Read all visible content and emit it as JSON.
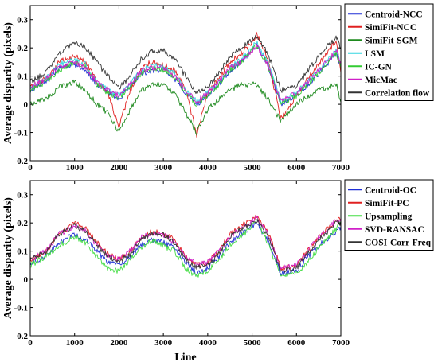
{
  "chart_data": [
    {
      "type": "line",
      "title": "",
      "xlabel": "",
      "ylabel": "Average disparity (pixels)",
      "xlim": [
        0,
        7000
      ],
      "ylim": [
        -0.2,
        0.35
      ],
      "x_ticks": [
        0,
        1000,
        2000,
        3000,
        4000,
        5000,
        6000,
        7000
      ],
      "y_ticks": [
        -0.2,
        -0.1,
        0,
        0.1,
        0.2,
        0.3
      ],
      "x_tick_labels": [
        "0",
        "1000",
        "2000",
        "3000",
        "4000",
        "5000",
        "6000",
        "7000"
      ],
      "y_tick_labels": [
        "-0.2",
        "-0.1",
        "0",
        "0.1",
        "0.2",
        "0.3"
      ],
      "grid": false,
      "legend_position": "right",
      "x": [
        0,
        350,
        650,
        1000,
        1250,
        1500,
        1750,
        2000,
        2250,
        2500,
        2750,
        3000,
        3250,
        3500,
        3750,
        4000,
        4250,
        4500,
        4750,
        5000,
        5100,
        5350,
        5650,
        6000,
        6250,
        6500,
        6900,
        7000
      ],
      "series": [
        {
          "name": "Centroid-NCC",
          "color": "#1f2fd6",
          "values": [
            0.05,
            0.08,
            0.13,
            0.14,
            0.12,
            0.07,
            0.04,
            0.02,
            0.06,
            0.11,
            0.12,
            0.12,
            0.09,
            0.04,
            0.0,
            0.03,
            0.07,
            0.12,
            0.15,
            0.19,
            0.21,
            0.14,
            0.0,
            0.03,
            0.07,
            0.11,
            0.18,
            0.13
          ]
        },
        {
          "name": "SimiFit-NCC",
          "color": "#e02020",
          "values": [
            0.06,
            0.09,
            0.15,
            0.17,
            0.15,
            0.08,
            0.04,
            -0.08,
            0.05,
            0.13,
            0.15,
            0.14,
            0.12,
            0.06,
            -0.11,
            0.04,
            0.09,
            0.15,
            0.18,
            0.22,
            0.25,
            0.16,
            -0.05,
            0.03,
            0.09,
            0.14,
            0.23,
            0.12
          ]
        },
        {
          "name": "SimiFit-SGM",
          "color": "#1e8a1e",
          "values": [
            0.0,
            0.02,
            0.06,
            0.08,
            0.05,
            0.0,
            -0.03,
            -0.1,
            -0.02,
            0.05,
            0.07,
            0.07,
            0.04,
            -0.03,
            -0.1,
            -0.02,
            0.02,
            0.05,
            0.07,
            0.07,
            0.07,
            0.02,
            -0.06,
            0.0,
            0.03,
            0.05,
            0.07,
            0.01
          ]
        },
        {
          "name": "LSM",
          "color": "#33d6e0",
          "values": [
            0.06,
            0.09,
            0.14,
            0.16,
            0.14,
            0.08,
            0.05,
            0.03,
            0.07,
            0.12,
            0.14,
            0.13,
            0.11,
            0.05,
            0.01,
            0.04,
            0.08,
            0.13,
            0.16,
            0.2,
            0.22,
            0.15,
            0.01,
            0.04,
            0.08,
            0.12,
            0.19,
            0.14
          ]
        },
        {
          "name": "IC-GN",
          "color": "#33cc33",
          "values": [
            0.05,
            0.08,
            0.12,
            0.15,
            0.13,
            0.07,
            0.04,
            0.02,
            0.06,
            0.11,
            0.13,
            0.12,
            0.1,
            0.04,
            0.0,
            0.03,
            0.07,
            0.12,
            0.15,
            0.19,
            0.21,
            0.14,
            0.0,
            0.03,
            0.07,
            0.11,
            0.18,
            0.13
          ]
        },
        {
          "name": "MicMac",
          "color": "#d020c8",
          "values": [
            0.06,
            0.09,
            0.13,
            0.15,
            0.13,
            0.08,
            0.05,
            0.03,
            0.07,
            0.12,
            0.13,
            0.13,
            0.1,
            0.05,
            0.01,
            0.04,
            0.08,
            0.13,
            0.15,
            0.19,
            0.21,
            0.14,
            0.01,
            0.04,
            0.08,
            0.12,
            0.19,
            0.14
          ]
        },
        {
          "name": "Correlation flow",
          "color": "#333333",
          "values": [
            0.08,
            0.11,
            0.18,
            0.22,
            0.2,
            0.15,
            0.1,
            0.06,
            0.1,
            0.16,
            0.19,
            0.19,
            0.16,
            0.1,
            0.04,
            0.06,
            0.11,
            0.17,
            0.2,
            0.23,
            0.24,
            0.18,
            0.05,
            0.06,
            0.12,
            0.17,
            0.24,
            0.2
          ]
        }
      ]
    },
    {
      "type": "line",
      "title": "",
      "xlabel": "Line",
      "ylabel": "Average disparity (pixels)",
      "xlim": [
        0,
        7000
      ],
      "ylim": [
        -0.2,
        0.35
      ],
      "x_ticks": [
        0,
        1000,
        2000,
        3000,
        4000,
        5000,
        6000,
        7000
      ],
      "y_ticks": [
        -0.2,
        -0.1,
        0,
        0.1,
        0.2,
        0.3
      ],
      "x_tick_labels": [
        "0",
        "1000",
        "2000",
        "3000",
        "4000",
        "5000",
        "6000",
        "7000"
      ],
      "y_tick_labels": [
        "-0.2",
        "-0.1",
        "0",
        "0.1",
        "0.2",
        "0.3"
      ],
      "grid": false,
      "legend_position": "right",
      "x": [
        0,
        350,
        650,
        1000,
        1250,
        1500,
        1750,
        2000,
        2250,
        2500,
        2750,
        3000,
        3250,
        3500,
        3750,
        4000,
        4250,
        4500,
        4750,
        5000,
        5100,
        5350,
        5650,
        6000,
        6250,
        6500,
        6900,
        7000
      ],
      "series": [
        {
          "name": "Centroid-OC",
          "color": "#1f2fd6",
          "values": [
            0.06,
            0.08,
            0.13,
            0.16,
            0.14,
            0.1,
            0.06,
            0.05,
            0.08,
            0.12,
            0.14,
            0.13,
            0.11,
            0.06,
            0.02,
            0.04,
            0.08,
            0.13,
            0.16,
            0.19,
            0.2,
            0.14,
            0.02,
            0.03,
            0.08,
            0.12,
            0.17,
            0.18
          ]
        },
        {
          "name": "SimiFit-PC",
          "color": "#e02020",
          "values": [
            0.07,
            0.1,
            0.16,
            0.2,
            0.18,
            0.13,
            0.09,
            0.07,
            0.1,
            0.15,
            0.17,
            0.16,
            0.14,
            0.08,
            0.05,
            0.06,
            0.1,
            0.16,
            0.19,
            0.21,
            0.22,
            0.17,
            0.04,
            0.05,
            0.1,
            0.15,
            0.21,
            0.22
          ]
        },
        {
          "name": "Upsampling",
          "color": "#44dd44",
          "values": [
            0.05,
            0.08,
            0.12,
            0.15,
            0.13,
            0.08,
            0.04,
            0.03,
            0.07,
            0.11,
            0.14,
            0.12,
            0.1,
            0.04,
            0.01,
            0.03,
            0.07,
            0.12,
            0.15,
            0.19,
            0.21,
            0.13,
            0.01,
            0.02,
            0.06,
            0.11,
            0.18,
            0.21
          ]
        },
        {
          "name": "SVD-RANSAC",
          "color": "#d020c8",
          "values": [
            0.07,
            0.1,
            0.16,
            0.19,
            0.17,
            0.12,
            0.08,
            0.07,
            0.1,
            0.15,
            0.16,
            0.16,
            0.13,
            0.08,
            0.05,
            0.06,
            0.1,
            0.15,
            0.18,
            0.21,
            0.22,
            0.16,
            0.04,
            0.05,
            0.1,
            0.15,
            0.21,
            0.21
          ]
        },
        {
          "name": "COSI-Corr-Freq",
          "color": "#333333",
          "values": [
            0.07,
            0.1,
            0.16,
            0.19,
            0.17,
            0.12,
            0.08,
            0.06,
            0.09,
            0.14,
            0.16,
            0.16,
            0.13,
            0.07,
            0.04,
            0.05,
            0.09,
            0.15,
            0.18,
            0.2,
            0.21,
            0.16,
            0.03,
            0.04,
            0.09,
            0.14,
            0.2,
            0.2
          ]
        }
      ]
    }
  ]
}
